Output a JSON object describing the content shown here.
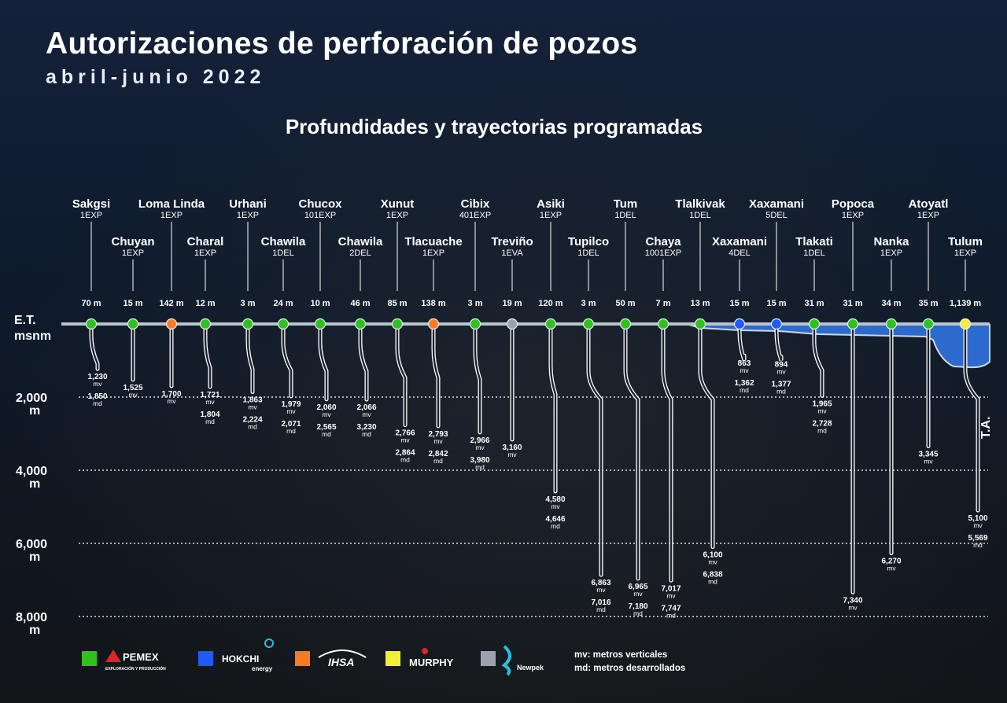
{
  "header": {
    "title": "Autorizaciones de perforación de pozos",
    "subtitle": "abril-junio 2022",
    "section_title": "Profundidades y trayectorias programadas"
  },
  "axis": {
    "surface_label_top": "E.T.",
    "surface_label_bottom": "msnm",
    "ticks": [
      {
        "value": 2000,
        "label": "2,000",
        "unit": "m"
      },
      {
        "value": 4000,
        "label": "4,000",
        "unit": "m"
      },
      {
        "value": 6000,
        "label": "6,000",
        "unit": "m"
      },
      {
        "value": 8000,
        "label": "8,000",
        "unit": "m"
      }
    ],
    "ta_label": "T.A."
  },
  "colors": {
    "pemex": "#2fc21e",
    "hokchi": "#1f59ff",
    "ihsa": "#ff7a1f",
    "murphy": "#f2ee3a",
    "newpek": "#9aa3ad",
    "water": "#2f6fd6",
    "surface": "#b9c4cf"
  },
  "chart_data": {
    "type": "table",
    "wells": [
      {
        "name": "Sakgsi",
        "code": "1EXP",
        "elevation": "70 m",
        "operator": "pemex",
        "mv": "1,230",
        "md": "1,850",
        "mv_value": 1230,
        "md_value": 1850
      },
      {
        "name": "Chuyan",
        "code": "1EXP",
        "elevation": "15 m",
        "operator": "pemex",
        "mv": "1,525",
        "md": "",
        "mv_value": 1525
      },
      {
        "name": "Loma Linda",
        "code": "1EXP",
        "elevation": "142 m",
        "operator": "ihsa",
        "mv": "1,700",
        "md": "",
        "mv_value": 1700
      },
      {
        "name": "Charal",
        "code": "1EXP",
        "elevation": "12 m",
        "operator": "pemex",
        "mv": "1,721",
        "md": "1,804",
        "mv_value": 1721,
        "md_value": 1804
      },
      {
        "name": "Urhani",
        "code": "1EXP",
        "elevation": "3 m",
        "operator": "pemex",
        "mv": "1,863",
        "md": "2,224",
        "mv_value": 1863,
        "md_value": 2224
      },
      {
        "name": "Chawila",
        "code": "1DEL",
        "elevation": "24 m",
        "operator": "pemex",
        "mv": "1,979",
        "md": "2,071",
        "mv_value": 1979,
        "md_value": 2071
      },
      {
        "name": "Chucox",
        "code": "101EXP",
        "elevation": "10 m",
        "operator": "pemex",
        "mv": "2,060",
        "md": "2,565",
        "mv_value": 2060,
        "md_value": 2565
      },
      {
        "name": "Chawila",
        "code": "2DEL",
        "elevation": "46 m",
        "operator": "pemex",
        "mv": "2,066",
        "md": "3,230",
        "mv_value": 2066,
        "md_value": 3230
      },
      {
        "name": "Xunut",
        "code": "1EXP",
        "elevation": "85 m",
        "operator": "pemex",
        "mv": "2,766",
        "md": "2,864",
        "mv_value": 2766,
        "md_value": 2864
      },
      {
        "name": "Tlacuache",
        "code": "1EXP",
        "elevation": "138 m",
        "operator": "ihsa",
        "mv": "2,793",
        "md": "2,842",
        "mv_value": 2793,
        "md_value": 2842
      },
      {
        "name": "Cibix",
        "code": "401EXP",
        "elevation": "3 m",
        "operator": "pemex",
        "mv": "2,966",
        "md": "3,980",
        "mv_value": 2966,
        "md_value": 3980
      },
      {
        "name": "Treviño",
        "code": "1EVA",
        "elevation": "19 m",
        "operator": "newpek",
        "mv": "3,160",
        "md": "",
        "mv_value": 3160
      },
      {
        "name": "Asiki",
        "code": "1EXP",
        "elevation": "120 m",
        "operator": "pemex",
        "mv": "4,580",
        "md": "4,646",
        "mv_value": 4580,
        "md_value": 4646
      },
      {
        "name": "Tupilco",
        "code": "1DEL",
        "elevation": "3 m",
        "operator": "pemex",
        "mv": "6,863",
        "md": "7,016",
        "mv_value": 6863,
        "md_value": 7016
      },
      {
        "name": "Tum",
        "code": "1DEL",
        "elevation": "50 m",
        "operator": "pemex",
        "mv": "6,965",
        "md": "7,180",
        "mv_value": 6965,
        "md_value": 7180
      },
      {
        "name": "Chaya",
        "code": "1001EXP",
        "elevation": "7 m",
        "operator": "pemex",
        "mv": "7,017",
        "md": "7,747",
        "mv_value": 7017,
        "md_value": 7747
      },
      {
        "name": "Tlalkivak",
        "code": "1DEL",
        "elevation": "13 m",
        "operator": "pemex",
        "mv": "6,100",
        "md": "6,838",
        "mv_value": 6100,
        "md_value": 6838
      },
      {
        "name": "Xaxamani",
        "code": "4DEL",
        "elevation": "15 m",
        "operator": "hokchi",
        "mv": "863",
        "md": "1,362",
        "mv_value": 863,
        "md_value": 1362
      },
      {
        "name": "Xaxamani",
        "code": "5DEL",
        "elevation": "15 m",
        "operator": "hokchi",
        "mv": "894",
        "md": "1,377",
        "mv_value": 894,
        "md_value": 1377
      },
      {
        "name": "Tlakati",
        "code": "1DEL",
        "elevation": "31 m",
        "operator": "pemex",
        "mv": "1,965",
        "md": "2,728",
        "mv_value": 1965,
        "md_value": 2728
      },
      {
        "name": "Popoca",
        "code": "1EXP",
        "elevation": "31 m",
        "operator": "pemex",
        "mv": "7,340",
        "md": "",
        "mv_value": 7340
      },
      {
        "name": "Nanka",
        "code": "1EXP",
        "elevation": "34 m",
        "operator": "pemex",
        "mv": "6,270",
        "md": "",
        "mv_value": 6270
      },
      {
        "name": "Atoyatl",
        "code": "1EXP",
        "elevation": "35 m",
        "operator": "pemex",
        "mv": "3,345",
        "md": "",
        "mv_value": 3345
      },
      {
        "name": "Tulum",
        "code": "1EXP",
        "elevation": "1,139 m",
        "operator": "murphy",
        "mv": "5,100",
        "md": "5,569",
        "mv_value": 5100,
        "md_value": 5569
      }
    ],
    "ylim": [
      0,
      8000
    ]
  },
  "legend": {
    "items": [
      {
        "operator": "pemex",
        "logo": "PEMEX",
        "logo_sub": "EXPLORACIÓN Y PRODUCCIÓN"
      },
      {
        "operator": "hokchi",
        "logo": "HOKCHI",
        "logo_sub": "energy"
      },
      {
        "operator": "ihsa",
        "logo": "IHSA",
        "logo_sub": ""
      },
      {
        "operator": "murphy",
        "logo": "MURPHY",
        "logo_sub": ""
      },
      {
        "operator": "newpek",
        "logo": "Newpek",
        "logo_sub": ""
      }
    ],
    "mv_key": "mv:",
    "mv_desc": "metros verticales",
    "md_key": "md:",
    "md_desc": "metros desarrollados"
  }
}
